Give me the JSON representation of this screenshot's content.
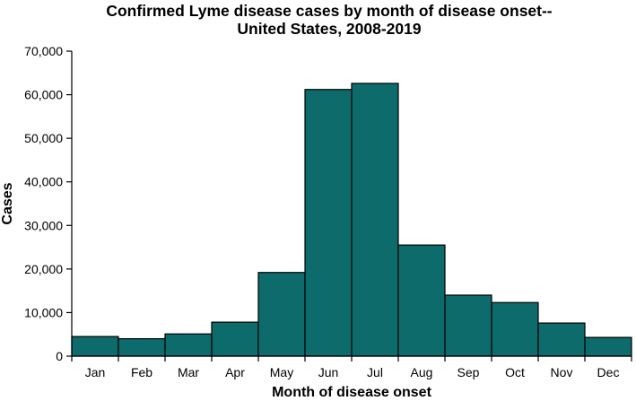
{
  "chart_data": {
    "type": "bar",
    "title_lines": [
      "Confirmed Lyme disease cases by month of disease onset--",
      "United States, 2008-2019"
    ],
    "xlabel": "Month of disease onset",
    "ylabel": "Cases",
    "categories": [
      "Jan",
      "Feb",
      "Mar",
      "Apr",
      "May",
      "Jun",
      "Jul",
      "Aug",
      "Sep",
      "Oct",
      "Nov",
      "Dec"
    ],
    "values": [
      4500,
      4000,
      5100,
      7800,
      19200,
      61200,
      62600,
      25500,
      14000,
      12300,
      7600,
      4300
    ],
    "ylim": [
      0,
      70000
    ],
    "yticks": [
      0,
      10000,
      20000,
      30000,
      40000,
      50000,
      60000,
      70000
    ],
    "ytick_labels": [
      "0",
      "10,000",
      "20,000",
      "30,000",
      "40,000",
      "50,000",
      "60,000",
      "70,000"
    ],
    "bar_color": "#0e6b6b",
    "grid": false,
    "legend": "none"
  }
}
